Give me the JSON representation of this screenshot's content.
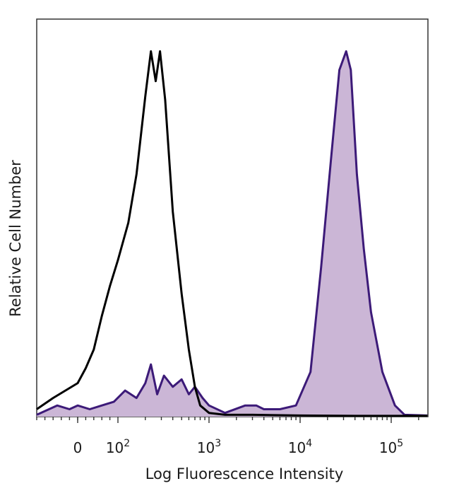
{
  "chart_data": {
    "type": "area",
    "xlabel": "Log Fluorescence Intensity",
    "ylabel": "Relative Cell Number",
    "x_scale": "biexponential",
    "xlim": [
      -100,
      250000
    ],
    "ylim": [
      0,
      1
    ],
    "grid": false,
    "tick_labels": [
      {
        "value": 0,
        "base": "0",
        "exp": ""
      },
      {
        "value": 100,
        "base": "10",
        "exp": "2"
      },
      {
        "value": 1000,
        "base": "10",
        "exp": "3"
      },
      {
        "value": 10000,
        "base": "10",
        "exp": "4"
      },
      {
        "value": 100000,
        "base": "10",
        "exp": "5"
      }
    ],
    "series": [
      {
        "style": "outline",
        "color": "#000000",
        "x": [
          -100,
          -60,
          -30,
          0,
          20,
          40,
          60,
          80,
          100,
          130,
          160,
          200,
          230,
          260,
          290,
          330,
          400,
          500,
          600,
          700,
          800,
          1000,
          1500,
          3000,
          10000,
          40000,
          250000
        ],
        "y": [
          0.02,
          0.05,
          0.07,
          0.09,
          0.13,
          0.18,
          0.27,
          0.35,
          0.42,
          0.52,
          0.65,
          0.86,
          0.98,
          0.9,
          0.98,
          0.85,
          0.55,
          0.33,
          0.18,
          0.08,
          0.03,
          0.01,
          0.005,
          0.005,
          0.003,
          0.002,
          0.002
        ]
      },
      {
        "style": "filled",
        "color": "#3c1a78",
        "fill": "#cbb6d6",
        "x": [
          -100,
          -50,
          -20,
          0,
          30,
          60,
          90,
          120,
          160,
          200,
          230,
          270,
          320,
          400,
          500,
          600,
          700,
          850,
          1000,
          1500,
          2500,
          3300,
          4000,
          6000,
          9000,
          13000,
          17000,
          22000,
          27000,
          32000,
          36000,
          42000,
          50000,
          60000,
          80000,
          110000,
          140000,
          250000
        ],
        "y": [
          0.005,
          0.03,
          0.02,
          0.03,
          0.02,
          0.03,
          0.04,
          0.07,
          0.05,
          0.09,
          0.14,
          0.06,
          0.11,
          0.08,
          0.1,
          0.06,
          0.08,
          0.05,
          0.03,
          0.01,
          0.03,
          0.03,
          0.02,
          0.02,
          0.03,
          0.12,
          0.4,
          0.7,
          0.93,
          0.98,
          0.93,
          0.65,
          0.45,
          0.28,
          0.12,
          0.03,
          0.005,
          0.003
        ]
      }
    ]
  }
}
